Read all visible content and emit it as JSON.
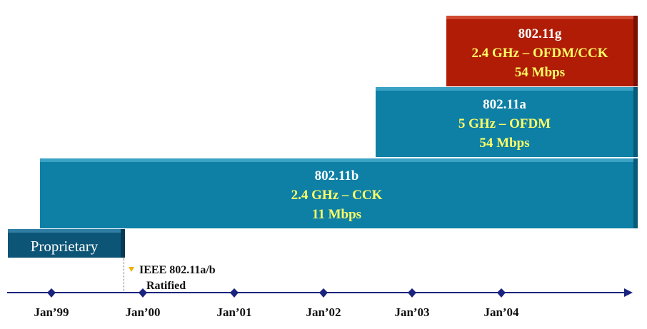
{
  "bars": {
    "g": {
      "line1": "802.11g",
      "line2": "2.4 GHz – OFDM/CCK",
      "line3": "54 Mbps"
    },
    "a": {
      "line1": "802.11a",
      "line2": "5 GHz – OFDM",
      "line3": "54 Mbps"
    },
    "b": {
      "line1": "802.11b",
      "line2": "2.4 GHz – CCK",
      "line3": "11 Mbps"
    },
    "proprietary": {
      "label": "Proprietary"
    }
  },
  "milestone": {
    "line1": "IEEE 802.11a/b",
    "line2": "Ratified"
  },
  "timeline": {
    "ticks": [
      "Jan’99",
      "Jan’00",
      "Jan’01",
      "Jan’02",
      "Jan’03",
      "Jan’04"
    ]
  },
  "colors": {
    "g_bar": "#b01c05",
    "ab_bar": "#0e7fa5",
    "proprietary_bar": "#0d5577",
    "axis": "#1a237e",
    "milestone_marker": "#f4b000"
  }
}
